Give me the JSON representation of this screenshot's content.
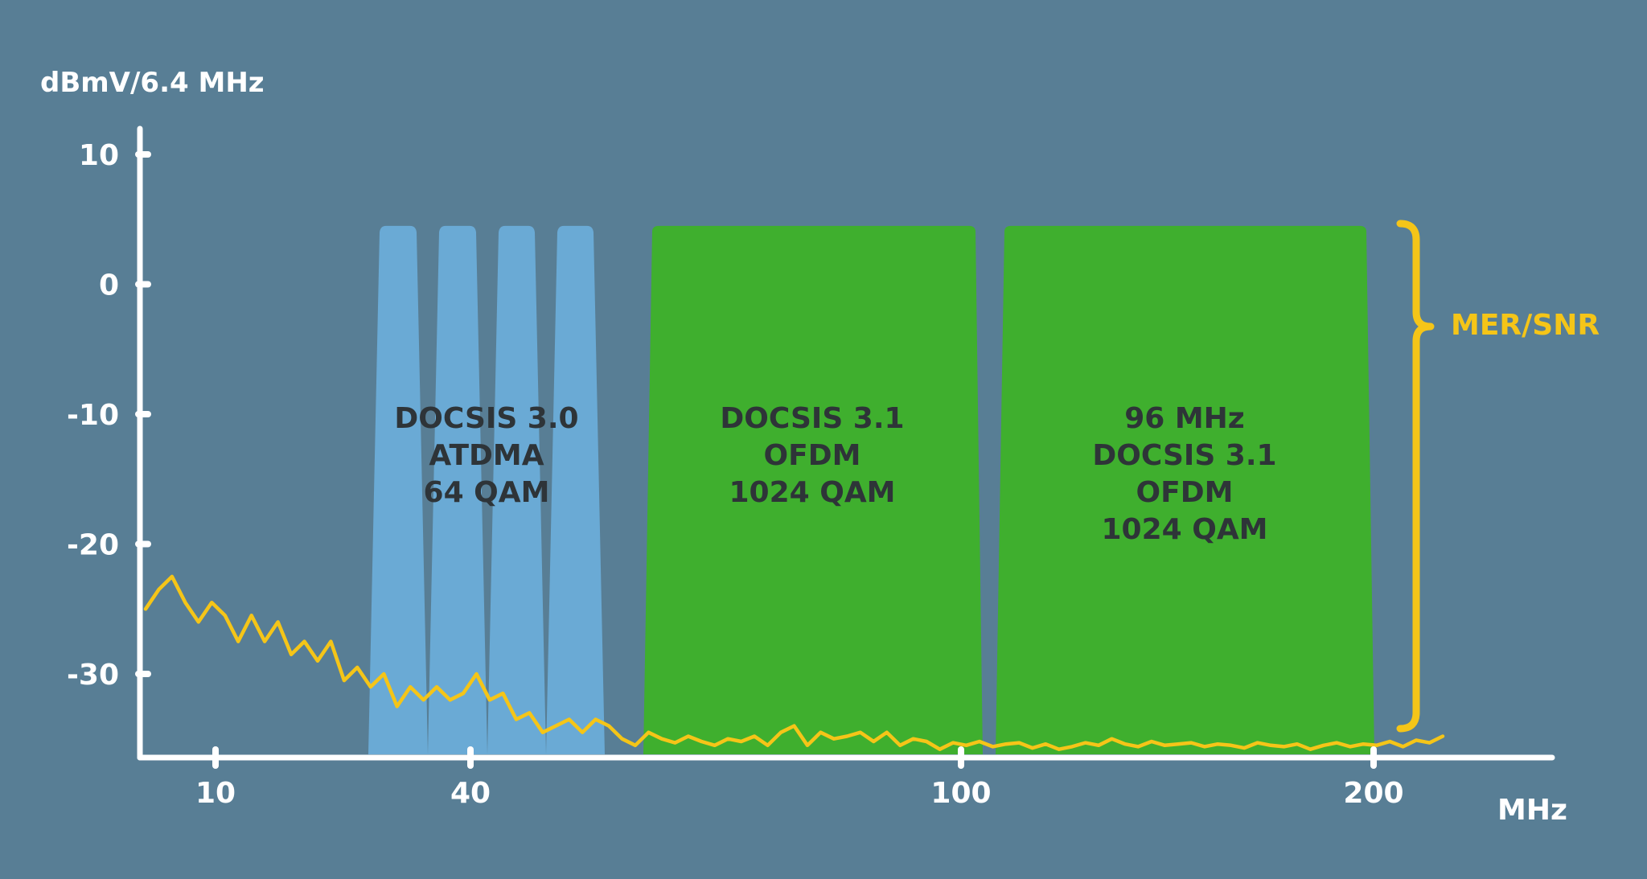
{
  "chart_data": {
    "type": "area",
    "title": "",
    "ylabel": "dBmV/6.4 MHz",
    "xlabel": "MHz",
    "y_ticks": [
      10,
      0,
      -10,
      -20,
      -30
    ],
    "y_tick_labels": [
      "10",
      "0",
      "-10",
      "-20",
      "-30"
    ],
    "ylim": [
      -36,
      12
    ],
    "x_ticks": [
      10,
      40,
      100,
      200
    ],
    "x_tick_labels": [
      "10",
      "40",
      "100",
      "200"
    ],
    "grid": false,
    "annotation": "MER/SNR",
    "block_level": 4.5,
    "blocks": [
      {
        "name": "DOCSIS 3.0 ATDMA 64 QAM",
        "label_lines": [
          "DOCSIS 3.0",
          "ATDMA",
          "64 QAM"
        ],
        "color": "#6aaad5",
        "channels": 4
      },
      {
        "name": "DOCSIS 3.1 OFDM 1024 QAM",
        "label_lines": [
          "DOCSIS 3.1",
          "OFDM",
          "1024 QAM"
        ],
        "color": "#3faf2e"
      },
      {
        "name": "96 MHz DOCSIS 3.1 OFDM 1024 QAM",
        "label_lines": [
          "96 MHz",
          "DOCSIS 3.1",
          "OFDM",
          "1024 QAM"
        ],
        "color": "#3faf2e"
      }
    ],
    "series": [
      {
        "color": "#f5c518",
        "y": [
          -25,
          -23.5,
          -22.5,
          -24.5,
          -26,
          -24.5,
          -25.5,
          -27.5,
          -25.5,
          -27.5,
          -26,
          -28.5,
          -27.5,
          -29,
          -27.5,
          -30.5,
          -29.5,
          -31,
          -30,
          -32.5,
          -31,
          -32,
          -31,
          -32,
          -31.5,
          -30,
          -32,
          -31.5,
          -33.5,
          -33,
          -34.5,
          -34,
          -33.5,
          -34.5,
          -33.5,
          -34,
          -35,
          -35.5,
          -34.5,
          -35,
          -35.3,
          -34.8,
          -35.2,
          -35.5,
          -35,
          -35.2,
          -34.8,
          -35.5,
          -34.5,
          -34,
          -35.5,
          -34.5,
          -35,
          -34.8,
          -34.5,
          -35.2,
          -34.5,
          -35.5,
          -35,
          -35.2,
          -35.8,
          -35.3,
          -35.5,
          -35.2,
          -35.6,
          -35.4,
          -35.3,
          -35.7,
          -35.4,
          -35.8,
          -35.6,
          -35.3,
          -35.5,
          -35,
          -35.4,
          -35.6,
          -35.2,
          -35.5,
          -35.4,
          -35.3,
          -35.6,
          -35.4,
          -35.5,
          -35.7,
          -35.3,
          -35.5,
          -35.6,
          -35.4,
          -35.8,
          -35.5,
          -35.3,
          -35.6,
          -35.4,
          -35.5,
          -35.2,
          -35.6,
          -35.1,
          -35.3,
          -34.8
        ]
      }
    ]
  }
}
